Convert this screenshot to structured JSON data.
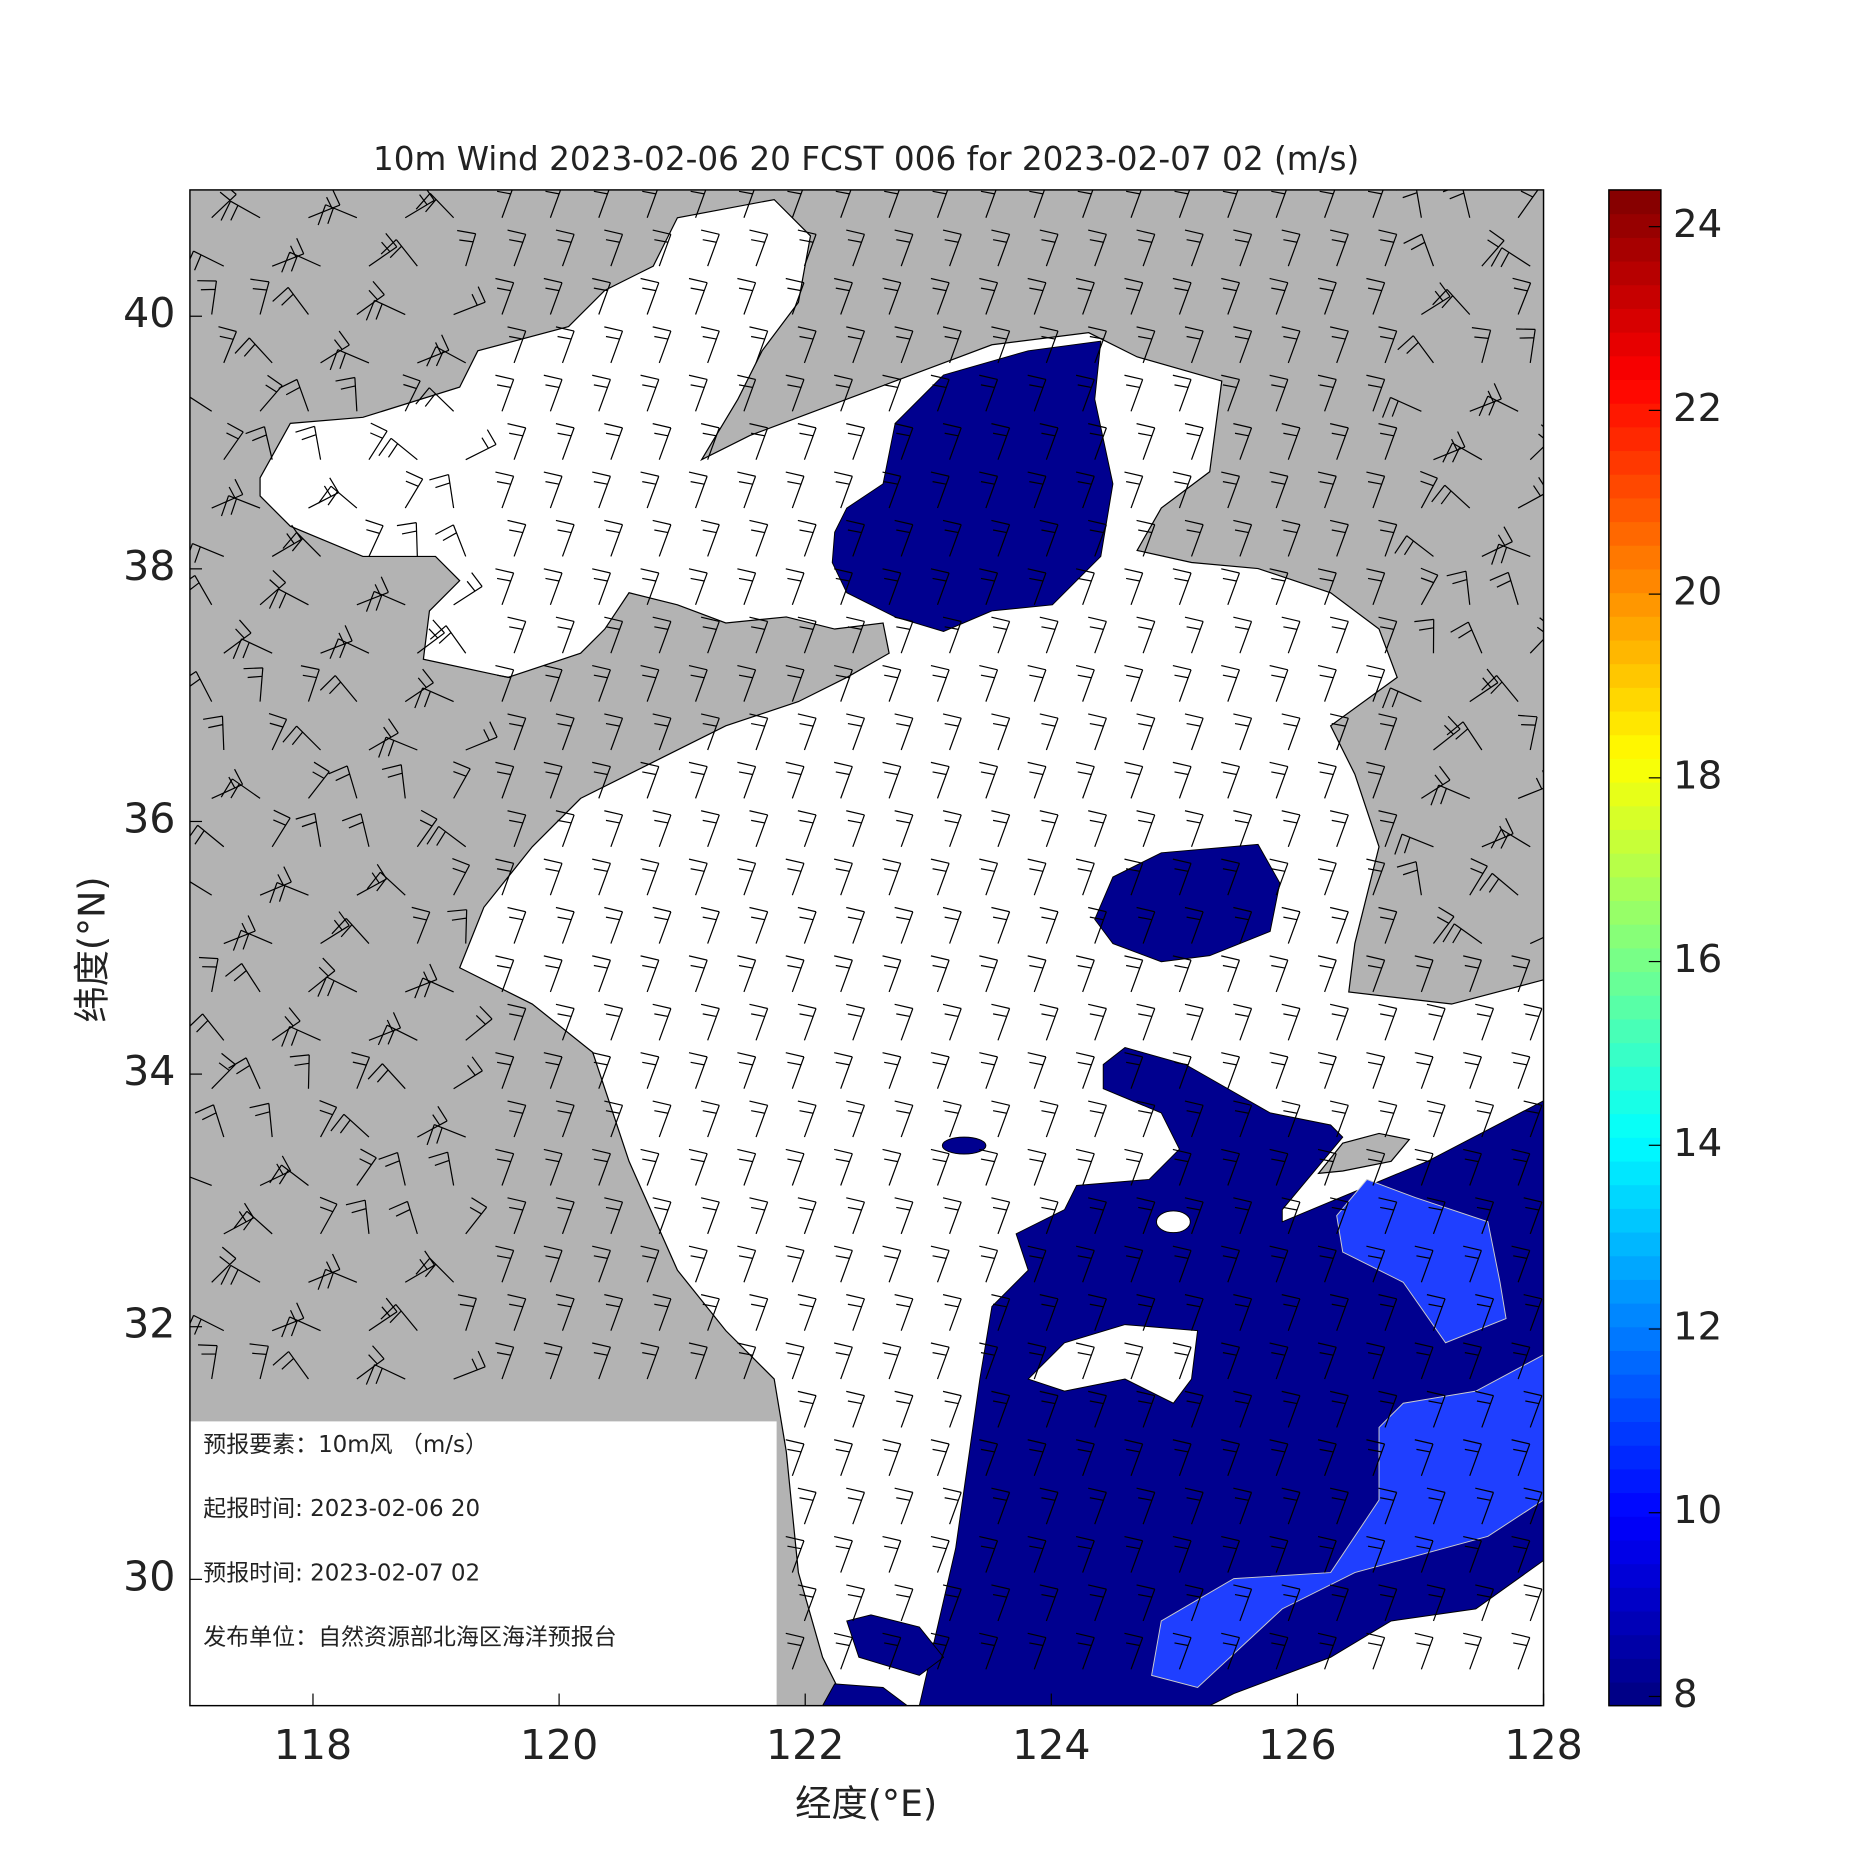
{
  "map": {
    "title": "10m Wind 2023-02-06 20 FCST 006 for 2023-02-07 02 (m/s)",
    "xlabel": "经度(°E)",
    "ylabel": "纬度(°N)",
    "xlim": [
      117,
      128
    ],
    "ylim": [
      29,
      41
    ],
    "xticks": [
      118,
      120,
      122,
      124,
      126,
      128
    ],
    "yticks": [
      30,
      32,
      34,
      36,
      38,
      40
    ]
  },
  "colorbar": {
    "lim": [
      7.9,
      24.4
    ],
    "ticks": [
      8,
      10,
      12,
      14,
      16,
      18,
      20,
      22,
      24
    ]
  },
  "info": {
    "rows": [
      "预报要素：10m风 （m/s）",
      "起报时间: 2023-02-06 20",
      "预报时间: 2023-02-07 02",
      "发布单位：自然资源部北海区海洋预报台"
    ]
  }
}
